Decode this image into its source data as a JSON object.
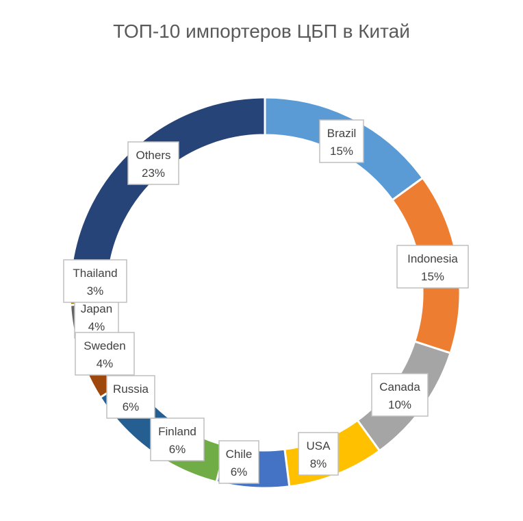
{
  "chart_data": {
    "type": "pie",
    "variant": "doughnut",
    "title": "ТОП-10 импортеров ЦБП в Китай",
    "slices": [
      {
        "label": "Brazil",
        "value": 15,
        "value_label": "15%",
        "color": "#5B9BD5"
      },
      {
        "label": "Indonesia",
        "value": 15,
        "value_label": "15%",
        "color": "#ED7D31"
      },
      {
        "label": "Canada",
        "value": 10,
        "value_label": "10%",
        "color": "#A5A5A5"
      },
      {
        "label": "USA",
        "value": 8,
        "value_label": "8%",
        "color": "#FFC000"
      },
      {
        "label": "Chile",
        "value": 6,
        "value_label": "6%",
        "color": "#4472C4"
      },
      {
        "label": "Finland",
        "value": 6,
        "value_label": "6%",
        "color": "#70AD47"
      },
      {
        "label": "Russia",
        "value": 6,
        "value_label": "6%",
        "color": "#255E91"
      },
      {
        "label": "Sweden",
        "value": 4,
        "value_label": "4%",
        "color": "#9E480E"
      },
      {
        "label": "Japan",
        "value": 4,
        "value_label": "4%",
        "color": "#636363"
      },
      {
        "label": "Thailand",
        "value": 3,
        "value_label": "3%",
        "color": "#997300"
      },
      {
        "label": "Others",
        "value": 23,
        "value_label": "23%",
        "color": "#264478"
      }
    ]
  }
}
